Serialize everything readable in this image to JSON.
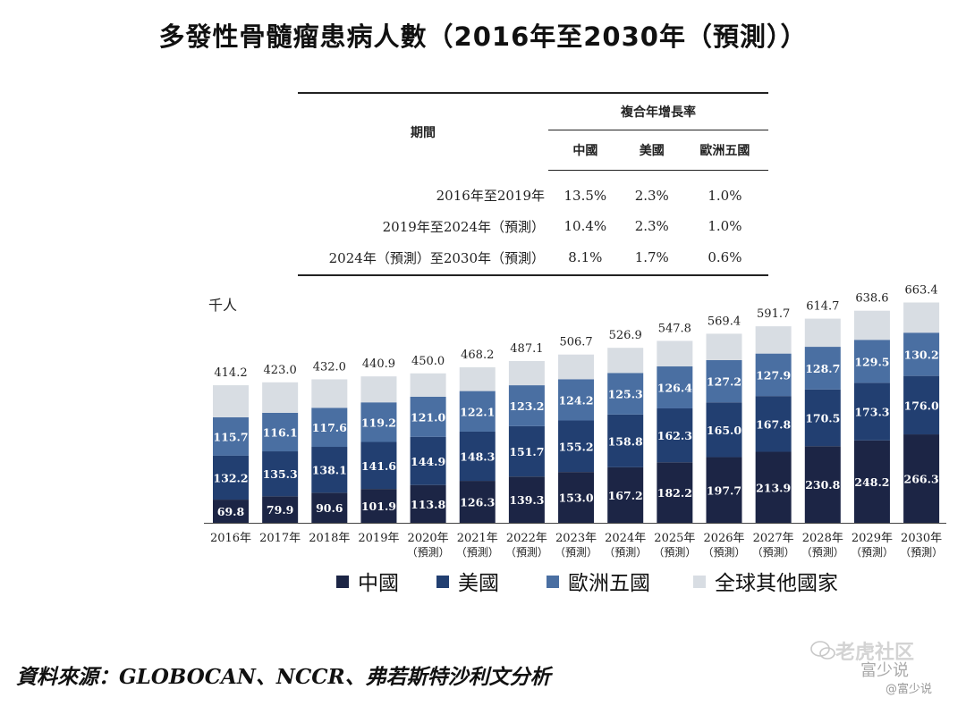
{
  "title": "多發性骨髓瘤患病人數（2016年至2030年（預測））",
  "table": {
    "period_header": "期間",
    "cagr_header": "複合年增長率",
    "columns": [
      "中國",
      "美國",
      "歐洲五國"
    ],
    "rows": [
      {
        "period": "2016年至2019年",
        "values": [
          "13.5%",
          "2.3%",
          "1.0%"
        ]
      },
      {
        "period": "2019年至2024年（預測）",
        "values": [
          "10.4%",
          "2.3%",
          "1.0%"
        ]
      },
      {
        "period": "2024年（預測）至2030年（預測）",
        "values": [
          "8.1%",
          "1.7%",
          "0.6%"
        ]
      }
    ]
  },
  "chart_data": {
    "type": "bar",
    "stacked": true,
    "ylabel": "千人",
    "categories": [
      "2016年",
      "2017年",
      "2018年",
      "2019年",
      "2020年\n（預測）",
      "2021年\n（預測）",
      "2022年\n（預測）",
      "2023年\n（預測）",
      "2024年\n（預測）",
      "2025年\n（預測）",
      "2026年\n（預測）",
      "2027年\n（預測）",
      "2028年\n（預測）",
      "2029年\n（預測）",
      "2030年\n（預測）"
    ],
    "totals": [
      "414.2",
      "423.0",
      "432.0",
      "440.9",
      "450.0",
      "468.2",
      "487.1",
      "506.7",
      "526.9",
      "547.8",
      "569.4",
      "591.7",
      "614.7",
      "638.6",
      "663.4"
    ],
    "series": [
      {
        "name": "中國",
        "color": "#1c2545",
        "labels": [
          "69.8",
          "79.9",
          "90.6",
          "101.9",
          "113.8",
          "126.3",
          "139.3",
          "153.0",
          "167.2",
          "182.2",
          "197.7",
          "213.9",
          "230.8",
          "248.2",
          "266.3"
        ]
      },
      {
        "name": "美國",
        "color": "#223f71",
        "labels": [
          "132.2",
          "135.3",
          "138.1",
          "141.6",
          "144.9",
          "148.3",
          "151.7",
          "155.2",
          "158.8",
          "162.3",
          "165.0",
          "167.8",
          "170.5",
          "173.3",
          "176.0"
        ]
      },
      {
        "name": "歐洲五國",
        "color": "#4a6fa2",
        "labels": [
          "115.7",
          "116.1",
          "117.6",
          "119.2",
          "121.0",
          "122.1",
          "123.2",
          "124.2",
          "125.3",
          "126.4",
          "127.2",
          "127.9",
          "128.7",
          "129.5",
          "130.2"
        ]
      },
      {
        "name": "全球其他國家",
        "color": "#d8dde3",
        "values": [
          96.5,
          91.7,
          85.7,
          78.2,
          70.3,
          71.5,
          72.9,
          74.3,
          75.6,
          76.9,
          79.5,
          82.1,
          84.7,
          87.6,
          90.9
        ]
      }
    ]
  },
  "source": "資料來源：GLOBOCAN、NCCR、弗若斯特沙利文分析",
  "watermark": {
    "line1": "老虎社区",
    "line2": "富少说",
    "line3": "@富少说"
  }
}
